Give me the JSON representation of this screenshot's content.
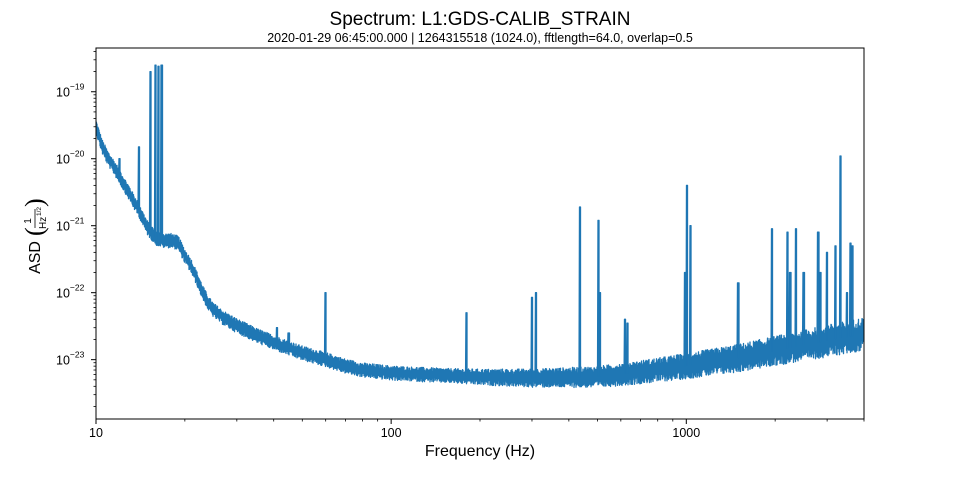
{
  "chart_data": {
    "type": "line",
    "title": "Spectrum: L1:GDS-CALIB_STRAIN",
    "subtitle": "2020-01-29 06:45:00.000 | 1264315518 (1024.0), fftlength=64.0, overlap=0.5",
    "xlabel": "Frequency (Hz)",
    "ylabel": {
      "prefix": "ASD",
      "numerator": "1",
      "denominator": "Hz",
      "exponent": "1/2"
    },
    "xscale": "log",
    "yscale": "log",
    "xlim": [
      10,
      4000
    ],
    "ylim": [
      1.3e-24,
      4.5e-19
    ],
    "grid": false,
    "x_ticks": [
      {
        "value": 10,
        "label": "10"
      },
      {
        "value": 100,
        "label": "100"
      },
      {
        "value": 1000,
        "label": "1000"
      }
    ],
    "y_ticks": [
      {
        "value": 1e-19,
        "mantissa": "10",
        "exponent": "−19"
      },
      {
        "value": 1e-20,
        "mantissa": "10",
        "exponent": "−20"
      },
      {
        "value": 1e-21,
        "mantissa": "10",
        "exponent": "−21"
      },
      {
        "value": 1e-22,
        "mantissa": "10",
        "exponent": "−22"
      },
      {
        "value": 1e-23,
        "mantissa": "10",
        "exponent": "−23"
      }
    ],
    "series": [
      {
        "color": "#1f77b4",
        "spread_dex": 0.18,
        "baseline": [
          [
            10,
            3e-20
          ],
          [
            10.5,
            1.5e-20
          ],
          [
            11,
            1e-20
          ],
          [
            11.5,
            7.5e-21
          ],
          [
            12,
            5.5e-21
          ],
          [
            12.5,
            4e-21
          ],
          [
            13,
            3e-21
          ],
          [
            13.5,
            2.2e-21
          ],
          [
            14,
            1.7e-21
          ],
          [
            14.5,
            1.2e-21
          ],
          [
            15,
            9e-22
          ],
          [
            16,
            6.5e-22
          ],
          [
            17,
            6e-22
          ],
          [
            18,
            6e-22
          ],
          [
            19,
            5.5e-22
          ],
          [
            20,
            3.5e-22
          ],
          [
            21,
            2.5e-22
          ],
          [
            22,
            1.6e-22
          ],
          [
            23,
            1e-22
          ],
          [
            24,
            7e-23
          ],
          [
            25,
            5.5e-23
          ],
          [
            27,
            4.2e-23
          ],
          [
            30,
            3.2e-23
          ],
          [
            35,
            2.3e-23
          ],
          [
            40,
            1.8e-23
          ],
          [
            50,
            1.25e-23
          ],
          [
            60,
            1e-23
          ],
          [
            70,
            8e-24
          ],
          [
            80,
            7e-24
          ],
          [
            100,
            6.3e-24
          ],
          [
            150,
            5.8e-24
          ],
          [
            200,
            5.5e-24
          ],
          [
            300,
            5.3e-24
          ],
          [
            500,
            5.5e-24
          ],
          [
            700,
            6.5e-24
          ],
          [
            1000,
            8e-24
          ],
          [
            1500,
            1.05e-23
          ],
          [
            2000,
            1.35e-23
          ],
          [
            3000,
            1.9e-23
          ],
          [
            4000,
            2.4e-23
          ]
        ],
        "peaks": [
          [
            12.0,
            1e-20
          ],
          [
            14.0,
            1.5e-20
          ],
          [
            15.3,
            2e-19
          ],
          [
            15.9,
            2.5e-19
          ],
          [
            16.3,
            2.4e-19
          ],
          [
            16.7,
            2.5e-19
          ],
          [
            41,
            3e-23
          ],
          [
            45,
            2.5e-23
          ],
          [
            60,
            1e-22
          ],
          [
            180,
            5e-23
          ],
          [
            300,
            8.5e-23
          ],
          [
            310,
            1e-22
          ],
          [
            436,
            1.9e-21
          ],
          [
            504,
            1.2e-21
          ],
          [
            510,
            1e-22
          ],
          [
            620,
            4e-23
          ],
          [
            632,
            3.5e-23
          ],
          [
            990,
            2e-22
          ],
          [
            1005,
            4e-21
          ],
          [
            1033,
            1e-21
          ],
          [
            1500,
            1.4e-22
          ],
          [
            1950,
            9e-22
          ],
          [
            2200,
            8e-22
          ],
          [
            2250,
            2e-22
          ],
          [
            2350,
            9e-22
          ],
          [
            2500,
            2e-22
          ],
          [
            2800,
            8e-22
          ],
          [
            2850,
            2e-22
          ],
          [
            3000,
            4e-22
          ],
          [
            3200,
            5e-22
          ],
          [
            3330,
            1.1e-20
          ],
          [
            3500,
            1e-22
          ],
          [
            3600,
            5.5e-22
          ],
          [
            3650,
            5e-22
          ]
        ]
      }
    ]
  }
}
